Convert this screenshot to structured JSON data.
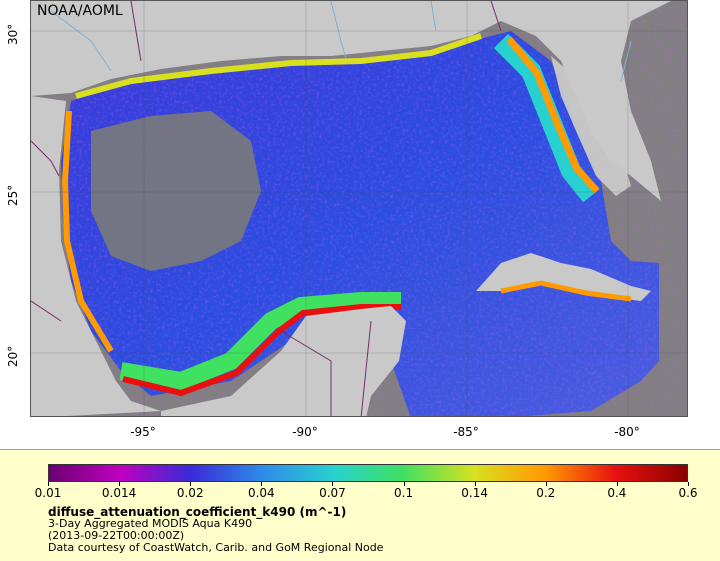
{
  "map": {
    "watermark": "NOAA/AOML",
    "lat_ticks": [
      "30°",
      "25°",
      "20°"
    ],
    "lon_ticks": [
      "-95°",
      "-90°",
      "-85°",
      "-80°"
    ],
    "colors": {
      "land": "#c9c9c9",
      "no_data": "#808080",
      "border": "#7a2a6a",
      "river": "#7fb2d6"
    }
  },
  "legend": {
    "ticks": [
      "0.01",
      "0.014",
      "0.02",
      "0.04",
      "0.07",
      "0.1",
      "0.14",
      "0.2",
      "0.4",
      "0.6"
    ],
    "colormap": [
      "#6a0070",
      "#c000c0",
      "#3a2ad8",
      "#2f8ae8",
      "#28d0d0",
      "#40e060",
      "#d8e020",
      "#ff9a00",
      "#e81010",
      "#8a0000"
    ],
    "title": "diffuse_attenuation_coefficient_k490 (m^-1)",
    "line1": "3-Day Aggregated MODIS Aqua K490",
    "line2": "(2013-09-22T00:00:00Z)",
    "line3": "Data courtesy of CoastWatch, Carib. and GoM Regional Node"
  }
}
